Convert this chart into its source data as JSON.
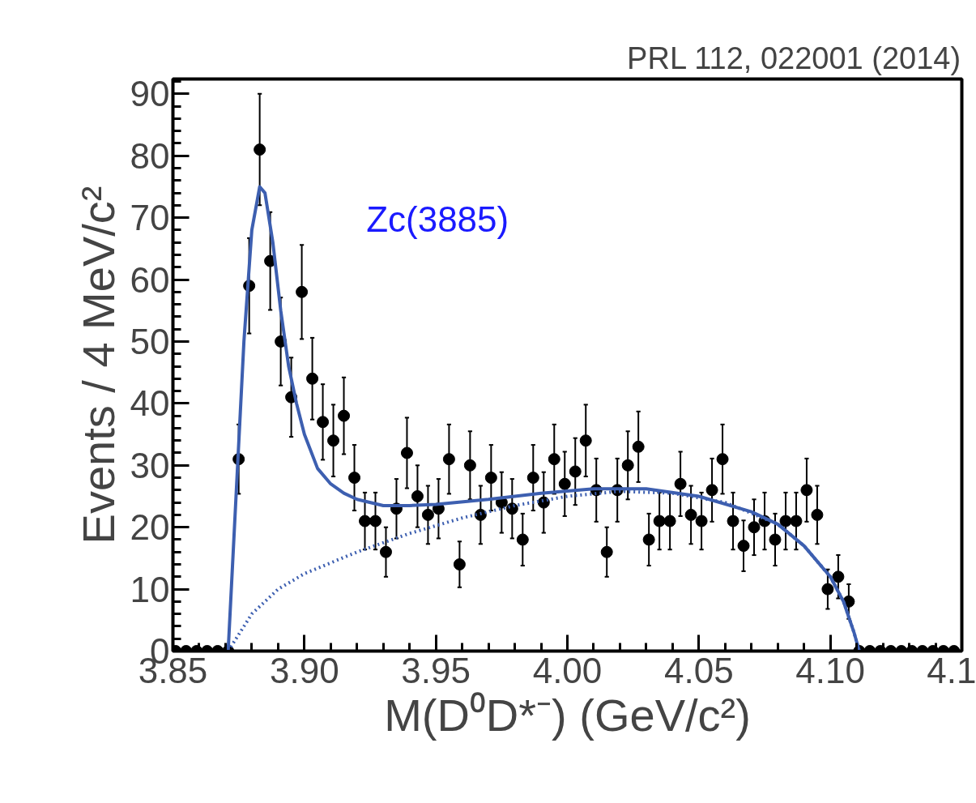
{
  "chart_data": {
    "type": "scatter",
    "xlabel": "M(D⁰D*⁻) (GeV/c²)",
    "ylabel": "Events / 4 MeV/c²",
    "annotations": [
      "PRL 112, 022001 (2014)",
      "Zc(3885)"
    ],
    "xlim": [
      3.85,
      4.15
    ],
    "ylim": [
      0,
      92.4
    ],
    "xticks": [
      {
        "value": 3.85,
        "label": "3.85"
      },
      {
        "value": 3.9,
        "label": "3.90"
      },
      {
        "value": 3.95,
        "label": "3.95"
      },
      {
        "value": 4.0,
        "label": "4.00"
      },
      {
        "value": 4.05,
        "label": "4.05"
      },
      {
        "value": 4.1,
        "label": "4.10"
      },
      {
        "value": 4.15,
        "label": "4.1"
      }
    ],
    "yticks": [
      0,
      10,
      20,
      30,
      40,
      50,
      60,
      70,
      80,
      90
    ],
    "grid": false,
    "series": [
      {
        "color": "#000000",
        "marker": "circle",
        "x": [
          3.851,
          3.855,
          3.859,
          3.863,
          3.867,
          3.871,
          3.875,
          3.879,
          3.883,
          3.887,
          3.891,
          3.895,
          3.899,
          3.903,
          3.907,
          3.911,
          3.915,
          3.919,
          3.923,
          3.927,
          3.931,
          3.935,
          3.939,
          3.943,
          3.947,
          3.951,
          3.955,
          3.959,
          3.963,
          3.967,
          3.971,
          3.975,
          3.979,
          3.983,
          3.987,
          3.991,
          3.995,
          3.999,
          4.003,
          4.007,
          4.011,
          4.015,
          4.019,
          4.023,
          4.027,
          4.031,
          4.035,
          4.039,
          4.043,
          4.047,
          4.051,
          4.055,
          4.059,
          4.063,
          4.067,
          4.071,
          4.075,
          4.079,
          4.083,
          4.087,
          4.091,
          4.095,
          4.099,
          4.103,
          4.107,
          4.111,
          4.115,
          4.119,
          4.123,
          4.127,
          4.131,
          4.135,
          4.139,
          4.143,
          4.147
        ],
        "values": [
          0,
          0,
          0,
          0,
          0,
          0,
          31,
          59,
          81,
          63,
          50,
          41,
          58,
          44,
          37,
          34,
          38,
          28,
          21,
          21,
          16,
          23,
          32,
          25,
          22,
          23,
          31,
          14,
          30,
          22,
          28,
          24,
          23,
          18,
          28,
          24,
          31,
          27,
          29,
          34,
          26,
          16,
          26,
          30,
          33,
          18,
          21,
          21,
          27,
          22,
          21,
          26,
          31,
          21,
          17,
          20,
          21,
          18,
          21,
          21,
          26,
          22,
          10,
          12,
          8,
          0,
          0,
          0,
          0,
          0,
          0,
          0,
          0,
          0,
          0
        ],
        "errors": [
          null,
          null,
          null,
          null,
          null,
          null,
          5.6,
          7.7,
          9,
          7.9,
          7.1,
          6.4,
          7.6,
          6.6,
          6.1,
          5.8,
          6.2,
          5.3,
          4.6,
          4.6,
          4,
          4.8,
          5.7,
          5,
          4.7,
          4.8,
          5.6,
          3.7,
          5.5,
          4.7,
          5.3,
          4.9,
          4.8,
          4.2,
          5.3,
          4.9,
          5.6,
          5.2,
          5.4,
          5.8,
          5.1,
          4,
          5.1,
          5.5,
          5.7,
          4.2,
          4.6,
          4.6,
          5.2,
          4.7,
          4.6,
          5.1,
          5.6,
          4.6,
          4.1,
          4.5,
          4.6,
          4.2,
          4.6,
          4.6,
          5.1,
          4.7,
          3.2,
          3.5,
          2.8,
          null,
          null,
          null,
          null,
          null,
          null,
          null,
          null,
          null,
          null
        ]
      },
      {
        "type": "line",
        "color": "#3d5fb0",
        "line_style": "solid",
        "marker": "none",
        "x": [
          3.871,
          3.874,
          3.877,
          3.88,
          3.883,
          3.885,
          3.888,
          3.891,
          3.894,
          3.897,
          3.9,
          3.905,
          3.91,
          3.915,
          3.92,
          3.93,
          3.94,
          3.95,
          3.97,
          3.99,
          4.01,
          4.03,
          4.05,
          4.07,
          4.08,
          4.09,
          4.1,
          4.105,
          4.109,
          4.111
        ],
        "values": [
          0,
          25,
          50,
          68,
          75,
          74,
          66,
          55,
          46,
          40,
          35,
          29.5,
          27,
          25.5,
          24.5,
          23.5,
          23.5,
          23.7,
          24.5,
          25.5,
          26.2,
          26.2,
          25,
          22.5,
          20.5,
          17,
          12,
          8,
          3,
          0
        ]
      },
      {
        "type": "line",
        "color": "#3d5fb0",
        "line_style": "dotted",
        "marker": "none",
        "x": [
          3.871,
          3.88,
          3.89,
          3.9,
          3.92,
          3.94,
          3.96,
          3.98,
          4.0,
          4.02,
          4.04,
          4.06,
          4.08,
          4.09,
          4.1,
          4.105,
          4.109,
          4.111
        ],
        "values": [
          0,
          6,
          10,
          12.5,
          16,
          19,
          21.5,
          23.5,
          25,
          25.8,
          25.5,
          24,
          20.5,
          17,
          12,
          8,
          3,
          0
        ]
      }
    ]
  }
}
